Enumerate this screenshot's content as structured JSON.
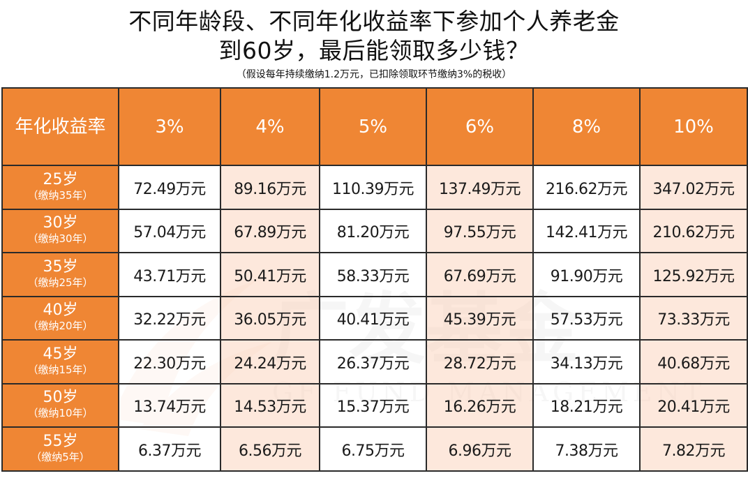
{
  "title": {
    "line1": "不同年龄段、不同年化收益率下参加个人养老金",
    "line2": "到60岁，最后能领取多少钱？",
    "note": "（假设每年持续缴纳1.2万元，已扣除领取环节缴纳3%的税收）"
  },
  "watermark": {
    "brand_mark": "广发基金",
    "brand_text": "GF FUND MANAGEMENT"
  },
  "colors": {
    "header_orange": "#ef8634",
    "tint_column": "#fce2d2",
    "border": "#2a2a2a"
  },
  "table": {
    "corner_label": "年化收益率",
    "rates": [
      "3%",
      "4%",
      "5%",
      "6%",
      "8%",
      "10%"
    ],
    "rows": [
      {
        "age": "25岁",
        "years": "（缴纳35年）",
        "values": [
          "72.49万元",
          "89.16万元",
          "110.39万元",
          "137.49万元",
          "216.62万元",
          "347.02万元"
        ]
      },
      {
        "age": "30岁",
        "years": "（缴纳30年）",
        "values": [
          "57.04万元",
          "67.89万元",
          "81.20万元",
          "97.55万元",
          "142.41万元",
          "210.62万元"
        ]
      },
      {
        "age": "35岁",
        "years": "（缴纳25年）",
        "values": [
          "43.71万元",
          "50.41万元",
          "58.33万元",
          "67.69万元",
          "91.90万元",
          "125.92万元"
        ]
      },
      {
        "age": "40岁",
        "years": "（缴纳20年）",
        "values": [
          "32.22万元",
          "36.05万元",
          "40.41万元",
          "45.39万元",
          "57.53万元",
          "73.33万元"
        ]
      },
      {
        "age": "45岁",
        "years": "（缴纳15年）",
        "values": [
          "22.30万元",
          "24.24万元",
          "26.37万元",
          "28.72万元",
          "34.13万元",
          "40.68万元"
        ]
      },
      {
        "age": "50岁",
        "years": "（缴纳10年）",
        "values": [
          "13.74万元",
          "14.53万元",
          "15.37万元",
          "16.26万元",
          "18.21万元",
          "20.41万元"
        ]
      },
      {
        "age": "55岁",
        "years": "（缴纳5年）",
        "values": [
          "6.37万元",
          "6.56万元",
          "6.75万元",
          "6.96万元",
          "7.38万元",
          "7.82万元"
        ]
      }
    ]
  }
}
